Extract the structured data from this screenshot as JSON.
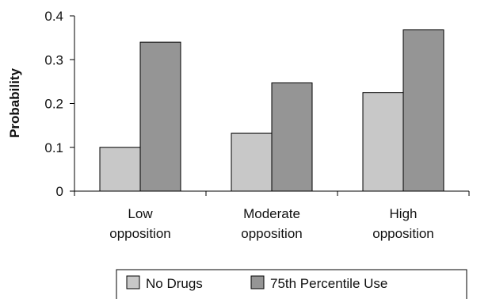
{
  "chart_data": {
    "type": "bar",
    "categories": [
      [
        "Low",
        "opposition"
      ],
      [
        "Moderate",
        "opposition"
      ],
      [
        "High",
        "opposition"
      ]
    ],
    "series": [
      {
        "name": "No Drugs",
        "values": [
          0.1,
          0.132,
          0.225
        ],
        "color": "#c8c8c8"
      },
      {
        "name": "75th Percentile Use",
        "values": [
          0.34,
          0.247,
          0.368
        ],
        "color": "#959595"
      }
    ],
    "xlabel": "",
    "ylabel": "Probability",
    "ylim": [
      0,
      0.4
    ],
    "yticks": [
      0,
      0.1,
      0.2,
      0.3,
      0.4
    ],
    "ytick_labels": [
      "0",
      "0.1",
      "0.2",
      "0.3",
      "0.4"
    ],
    "grid": false,
    "legend_position": "bottom",
    "colors": {
      "axis": "#000000",
      "bar_edge": "#000000",
      "text": "#111111"
    }
  }
}
